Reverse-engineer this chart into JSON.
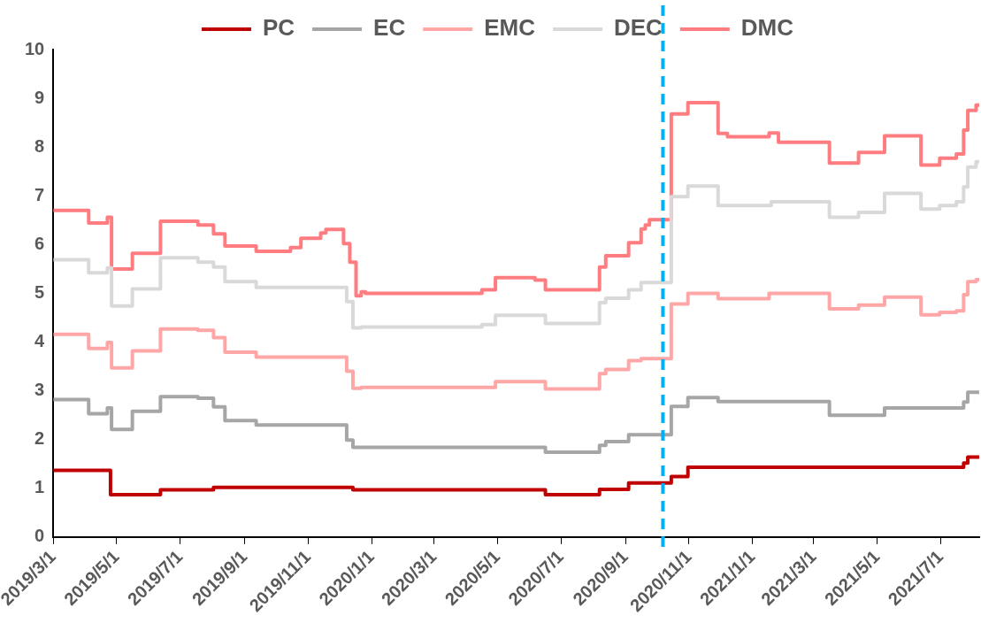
{
  "chart_data": {
    "type": "step",
    "legend": "top",
    "grid": false,
    "line_style": "solid",
    "xlim": [
      "2019-03-01",
      "2021-08-07"
    ],
    "xticks": [
      {
        "value": "2019-03-01",
        "label": "2019/3/1"
      },
      {
        "value": "2019-05-01",
        "label": "2019/5/1"
      },
      {
        "value": "2019-07-01",
        "label": "2019/7/1"
      },
      {
        "value": "2019-09-01",
        "label": "2019/9/1"
      },
      {
        "value": "2019-11-01",
        "label": "2019/11/1"
      },
      {
        "value": "2020-01-01",
        "label": "2020/1/1"
      },
      {
        "value": "2020-03-01",
        "label": "2020/3/1"
      },
      {
        "value": "2020-05-01",
        "label": "2020/5/1"
      },
      {
        "value": "2020-07-01",
        "label": "2020/7/1"
      },
      {
        "value": "2020-09-01",
        "label": "2020/9/1"
      },
      {
        "value": "2020-11-01",
        "label": "2020/11/1"
      },
      {
        "value": "2021-01-01",
        "label": "2021/1/1"
      },
      {
        "value": "2021-03-01",
        "label": "2021/3/1"
      },
      {
        "value": "2021-05-01",
        "label": "2021/5/1"
      },
      {
        "value": "2021-07-01",
        "label": "2021/7/1"
      }
    ],
    "ylim": [
      0,
      10
    ],
    "yticks": [
      0,
      1,
      2,
      3,
      4,
      5,
      6,
      7,
      8,
      9,
      10
    ],
    "ref_lines": [
      {
        "axis": "x",
        "value": "2020-10-07",
        "color": "#00b0f0",
        "line_style": "dashed"
      }
    ],
    "series": [
      {
        "name": "PC",
        "color": "#c00000",
        "x": [
          "2019-03-01",
          "2019-04-25",
          "2019-06-12",
          "2019-08-02",
          "2019-12-14",
          "2020-06-16",
          "2020-08-07",
          "2020-09-04",
          "2020-10-15",
          "2020-10-31",
          "2021-07-23",
          "2021-07-27",
          "2021-08-07"
        ],
        "values": [
          1.37,
          0.87,
          0.97,
          1.02,
          0.97,
          0.87,
          0.98,
          1.11,
          1.24,
          1.43,
          1.52,
          1.64,
          1.64
        ]
      },
      {
        "name": "EC",
        "color": "#a6a6a6",
        "x": [
          "2019-03-01",
          "2019-04-04",
          "2019-04-22",
          "2019-04-26",
          "2019-05-16",
          "2019-06-12",
          "2019-07-18",
          "2019-08-02",
          "2019-08-13",
          "2019-09-12",
          "2019-12-08",
          "2019-12-14",
          "2020-06-16",
          "2020-08-07",
          "2020-08-13",
          "2020-09-04",
          "2020-10-15",
          "2020-10-31",
          "2020-11-29",
          "2021-03-16",
          "2021-05-08",
          "2021-07-23",
          "2021-07-27",
          "2021-08-07"
        ],
        "values": [
          2.82,
          2.53,
          2.65,
          2.21,
          2.58,
          2.88,
          2.85,
          2.67,
          2.39,
          2.3,
          1.99,
          1.84,
          1.74,
          1.88,
          1.96,
          2.1,
          2.68,
          2.86,
          2.78,
          2.5,
          2.65,
          2.77,
          2.97,
          2.97
        ]
      },
      {
        "name": "EMC",
        "color": "#ffa7a7",
        "x": [
          "2019-03-01",
          "2019-04-04",
          "2019-04-22",
          "2019-04-26",
          "2019-05-16",
          "2019-06-12",
          "2019-07-18",
          "2019-08-02",
          "2019-08-13",
          "2019-09-12",
          "2019-12-08",
          "2019-12-14",
          "2019-12-22",
          "2020-04-29",
          "2020-06-16",
          "2020-08-07",
          "2020-08-13",
          "2020-09-04",
          "2020-09-16",
          "2020-10-15",
          "2020-10-31",
          "2020-11-29",
          "2021-01-17",
          "2021-03-16",
          "2021-04-13",
          "2021-05-08",
          "2021-06-12",
          "2021-06-30",
          "2021-07-16",
          "2021-07-23",
          "2021-07-27",
          "2021-08-04",
          "2021-08-07"
        ],
        "values": [
          4.16,
          3.87,
          3.99,
          3.47,
          3.82,
          4.27,
          4.24,
          4.09,
          3.79,
          3.69,
          3.4,
          3.05,
          3.07,
          3.19,
          3.04,
          3.35,
          3.44,
          3.62,
          3.66,
          4.78,
          5.0,
          4.89,
          5.0,
          4.68,
          4.76,
          4.92,
          4.56,
          4.61,
          4.64,
          4.97,
          5.24,
          5.28,
          5.28
        ]
      },
      {
        "name": "DEC",
        "color": "#d9d9d9",
        "x": [
          "2019-03-01",
          "2019-04-04",
          "2019-04-22",
          "2019-04-26",
          "2019-05-16",
          "2019-06-12",
          "2019-07-18",
          "2019-08-02",
          "2019-08-13",
          "2019-09-12",
          "2019-12-08",
          "2019-12-14",
          "2019-12-22",
          "2020-04-16",
          "2020-04-29",
          "2020-06-16",
          "2020-08-07",
          "2020-08-13",
          "2020-09-04",
          "2020-09-16",
          "2020-10-15",
          "2020-10-31",
          "2020-11-29",
          "2021-01-19",
          "2021-03-16",
          "2021-04-13",
          "2021-05-08",
          "2021-06-12",
          "2021-06-30",
          "2021-07-16",
          "2021-07-23",
          "2021-07-27",
          "2021-08-04",
          "2021-08-07"
        ],
        "values": [
          5.69,
          5.42,
          5.52,
          4.74,
          5.09,
          5.73,
          5.64,
          5.54,
          5.24,
          5.12,
          4.83,
          4.29,
          4.31,
          4.36,
          4.55,
          4.38,
          4.81,
          4.9,
          5.07,
          5.22,
          6.98,
          7.2,
          6.8,
          6.88,
          6.56,
          6.66,
          7.05,
          6.73,
          6.8,
          6.88,
          7.18,
          7.59,
          7.7,
          7.7
        ]
      },
      {
        "name": "DMC",
        "color": "#ff7c80",
        "x": [
          "2019-03-01",
          "2019-04-04",
          "2019-04-22",
          "2019-04-26",
          "2019-05-16",
          "2019-06-12",
          "2019-07-18",
          "2019-08-02",
          "2019-08-13",
          "2019-09-12",
          "2019-10-15",
          "2019-10-25",
          "2019-11-13",
          "2019-11-18",
          "2019-12-05",
          "2019-12-11",
          "2019-12-17",
          "2019-12-22",
          "2019-12-26",
          "2020-04-16",
          "2020-04-29",
          "2020-06-06",
          "2020-06-16",
          "2020-08-07",
          "2020-08-13",
          "2020-09-04",
          "2020-09-16",
          "2020-09-20",
          "2020-09-24",
          "2020-10-15",
          "2020-10-31",
          "2020-11-29",
          "2020-12-08",
          "2021-01-17",
          "2021-01-26",
          "2021-03-16",
          "2021-04-13",
          "2021-05-08",
          "2021-06-12",
          "2021-06-30",
          "2021-07-16",
          "2021-07-23",
          "2021-07-27",
          "2021-08-04",
          "2021-08-07"
        ],
        "values": [
          6.7,
          6.44,
          6.56,
          5.5,
          5.82,
          6.48,
          6.4,
          6.22,
          5.97,
          5.86,
          5.94,
          6.13,
          6.24,
          6.31,
          6.02,
          5.64,
          4.95,
          5.03,
          5.0,
          5.07,
          5.32,
          5.27,
          5.07,
          5.54,
          5.77,
          6.04,
          6.32,
          6.4,
          6.51,
          8.68,
          8.91,
          8.28,
          8.21,
          8.29,
          8.1,
          7.67,
          7.89,
          8.23,
          7.63,
          7.77,
          7.86,
          8.35,
          8.75,
          8.86,
          8.86
        ]
      }
    ]
  }
}
